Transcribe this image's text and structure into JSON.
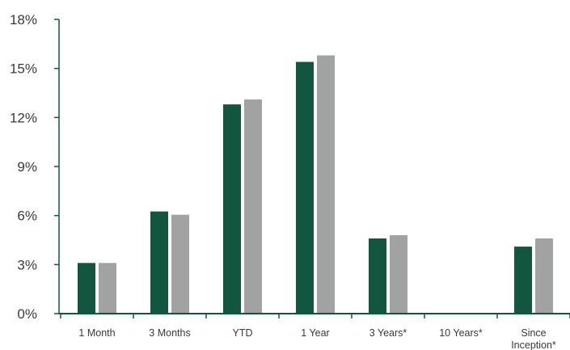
{
  "chart_data": {
    "type": "bar",
    "categories": [
      [
        "1 Month"
      ],
      [
        "3 Months"
      ],
      [
        "YTD"
      ],
      [
        "1 Year"
      ],
      [
        "3 Years*"
      ],
      [
        "10 Years*"
      ],
      [
        "Since",
        "Inception*"
      ]
    ],
    "series": [
      {
        "color": "#12563f",
        "values": [
          3.1,
          6.25,
          12.8,
          15.4,
          4.6,
          null,
          4.1
        ]
      },
      {
        "color": "#a1a3a3",
        "values": [
          3.1,
          6.05,
          13.1,
          15.8,
          4.8,
          null,
          4.6
        ]
      }
    ],
    "y_ticks": [
      "0%",
      "3%",
      "6%",
      "9%",
      "12%",
      "15%",
      "18%"
    ],
    "ylim": [
      0,
      18
    ],
    "axis_color": "#12563f",
    "grid": false,
    "legend": "none"
  }
}
